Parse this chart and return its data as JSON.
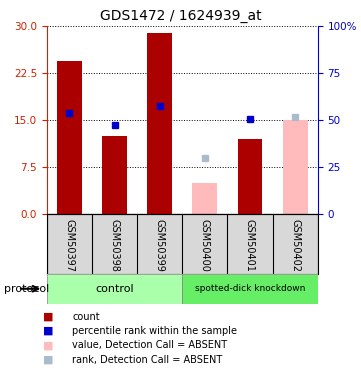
{
  "title": "GDS1472 / 1624939_at",
  "samples": [
    "GSM50397",
    "GSM50398",
    "GSM50399",
    "GSM50400",
    "GSM50401",
    "GSM50402"
  ],
  "bar_values": [
    24.5,
    12.5,
    29.0,
    null,
    12.0,
    null
  ],
  "bar_values_absent": [
    null,
    null,
    null,
    5.0,
    null,
    15.0
  ],
  "rank_markers": [
    16.2,
    14.2,
    17.2,
    null,
    15.1,
    null
  ],
  "rank_markers_absent": [
    null,
    null,
    null,
    9.0,
    null,
    15.5
  ],
  "ylim_left": [
    0,
    30
  ],
  "ylim_right": [
    0,
    100
  ],
  "yticks_left": [
    0,
    7.5,
    15,
    22.5,
    30
  ],
  "yticks_right": [
    0,
    25,
    50,
    75,
    100
  ],
  "ytick_labels_right": [
    "0",
    "25",
    "50",
    "75",
    "100%"
  ],
  "left_tick_color": "#cc2200",
  "right_tick_color": "#0000cc",
  "absent_bar_color": "#ffbbbb",
  "absent_rank_color": "#aabbcc",
  "red_bar_color": "#aa0000",
  "blue_marker_color": "#0000cc",
  "bar_width": 0.55,
  "marker_size": 5,
  "ctrl_color": "#aaffaa",
  "kd_color": "#66ee66",
  "label_bg_color": "#d8d8d8",
  "legend_colors": [
    "#aa0000",
    "#0000cc",
    "#ffbbbb",
    "#aabbcc"
  ],
  "legend_labels": [
    "count",
    "percentile rank within the sample",
    "value, Detection Call = ABSENT",
    "rank, Detection Call = ABSENT"
  ]
}
